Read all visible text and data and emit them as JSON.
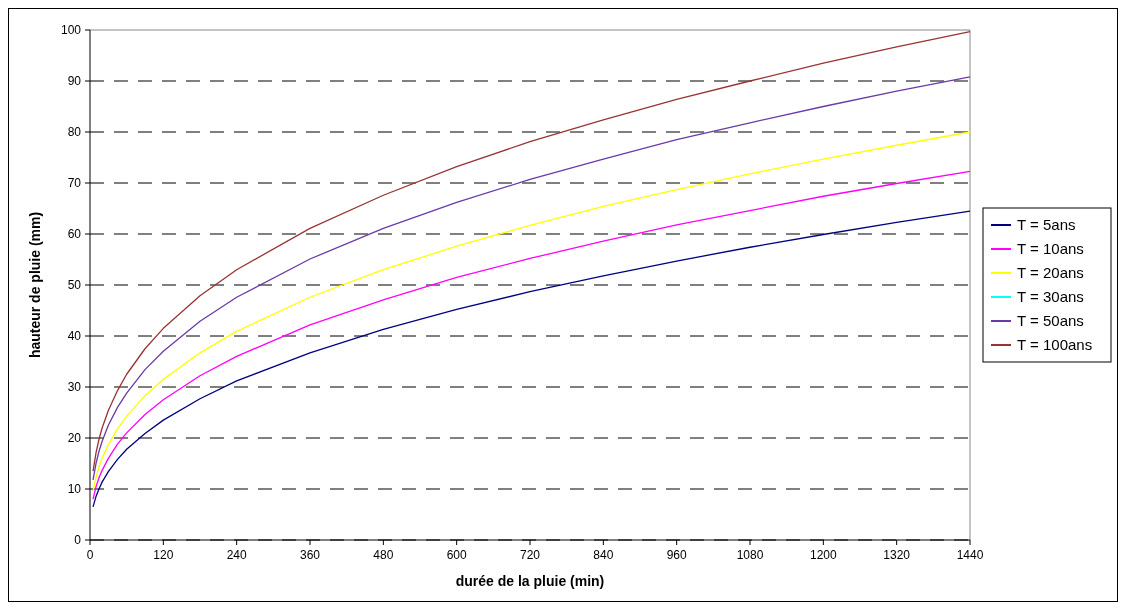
{
  "chart_data": {
    "type": "line",
    "xlabel": "durée de la pluie (min)",
    "ylabel": "hauteur de pluie (mm)",
    "x": [
      5,
      10,
      15,
      20,
      30,
      45,
      60,
      90,
      120,
      180,
      240,
      360,
      480,
      600,
      720,
      840,
      960,
      1080,
      1200,
      1320,
      1440
    ],
    "xlim": [
      0,
      1440
    ],
    "xticks": [
      0,
      120,
      240,
      360,
      480,
      600,
      720,
      840,
      960,
      1080,
      1200,
      1320,
      1440
    ],
    "ylim": [
      0,
      100
    ],
    "yticks": [
      0,
      10,
      20,
      30,
      40,
      50,
      60,
      70,
      80,
      90,
      100
    ],
    "grid": "y",
    "legend": "right",
    "line_style": "solid",
    "marker": "none",
    "series": [
      {
        "name": "T = 5ans",
        "color": "#000080",
        "values": [
          6.5,
          8.6,
          10.1,
          11.4,
          13.4,
          15.8,
          17.8,
          20.9,
          23.5,
          27.7,
          31.2,
          36.7,
          41.3,
          45.2,
          48.7,
          51.8,
          54.7,
          57.4,
          59.9,
          62.3,
          64.5
        ]
      },
      {
        "name": "T = 10ans",
        "color": "#ff00ff",
        "values": [
          8.0,
          10.5,
          12.3,
          13.7,
          16.0,
          18.8,
          21.0,
          24.6,
          27.5,
          32.2,
          36.0,
          42.2,
          47.1,
          51.5,
          55.2,
          58.6,
          61.8,
          64.6,
          67.4,
          69.9,
          72.3
        ]
      },
      {
        "name": "T = 20ans",
        "color": "#ffff00",
        "values": [
          9.6,
          12.4,
          14.4,
          16.1,
          18.7,
          21.8,
          24.3,
          28.3,
          31.5,
          36.7,
          40.9,
          47.6,
          53.0,
          57.6,
          61.7,
          65.4,
          68.7,
          71.8,
          74.7,
          77.4,
          80.0
        ]
      },
      {
        "name": "T = 30ans",
        "color": "#00ffff",
        "values": [
          null,
          null,
          null,
          null,
          null,
          null,
          null,
          null,
          null,
          null,
          null,
          null,
          null,
          null,
          null,
          null,
          null,
          null,
          null,
          null,
          null
        ]
      },
      {
        "name": "T = 50ans",
        "color": "#6a3aa8",
        "values": [
          11.8,
          15.1,
          17.5,
          19.4,
          22.5,
          26.0,
          28.8,
          33.4,
          37.0,
          42.9,
          47.6,
          55.1,
          61.1,
          66.2,
          70.7,
          74.7,
          78.5,
          81.8,
          85.0,
          88.0,
          90.8
        ]
      },
      {
        "name": "T = 100ans",
        "color": "#993333",
        "values": [
          13.5,
          17.2,
          19.9,
          22.0,
          25.4,
          29.3,
          32.5,
          37.5,
          41.5,
          47.9,
          53.0,
          61.1,
          67.6,
          73.2,
          78.1,
          82.4,
          86.4,
          90.0,
          93.5,
          96.7,
          99.7
        ]
      }
    ]
  }
}
